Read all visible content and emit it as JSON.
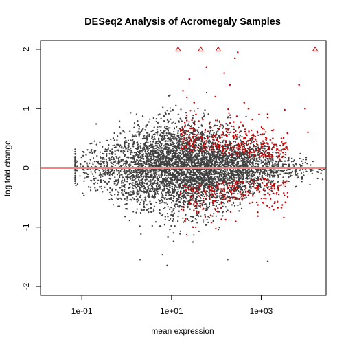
{
  "chart_data": {
    "type": "scatter",
    "title": "DESeq2 Analysis of Acromegaly Samples",
    "xlabel": "mean expression",
    "ylabel": "log fold change",
    "x_scale": "log10",
    "xlim": [
      0.012,
      28000
    ],
    "ylim": [
      -2.15,
      2.15
    ],
    "x_ticks": [
      {
        "value": 0.1,
        "label": "1e-01"
      },
      {
        "value": 10,
        "label": "1e+01"
      },
      {
        "value": 1000,
        "label": "1e+03"
      }
    ],
    "y_ticks": [
      {
        "value": -2,
        "label": "-2"
      },
      {
        "value": -1,
        "label": "-1"
      },
      {
        "value": 0,
        "label": "0"
      },
      {
        "value": 1,
        "label": "1"
      },
      {
        "value": 2,
        "label": "2"
      }
    ],
    "reference_line": {
      "y": 0,
      "color": "#ff7f7f"
    },
    "colors": {
      "not_significant": "#404040",
      "significant": "#cc0000"
    },
    "series": [
      {
        "marker": "triangle",
        "color": "#cc0000",
        "x": [
          14,
          45,
          110,
          16000
        ],
        "y": [
          2,
          2,
          2,
          2
        ]
      },
      {
        "marker": "dot",
        "color": "#cc0000",
        "x": [
          18,
          25,
          32,
          60,
          95,
          150,
          200,
          260,
          300,
          420,
          520,
          900,
          1400,
          7000,
          9500,
          11000,
          22,
          35,
          70,
          120,
          180,
          240,
          330,
          480,
          650,
          800,
          1100,
          1500,
          2200,
          28,
          40,
          55,
          85,
          140,
          210,
          280,
          380,
          550,
          700,
          1000,
          1300,
          1800,
          2600,
          20,
          30,
          50,
          75,
          130,
          190,
          250,
          360,
          500,
          750,
          1200,
          1700,
          2500,
          3500
        ],
        "y": [
          1.3,
          1.5,
          1.1,
          1.7,
          1.2,
          1.6,
          1.4,
          1.85,
          1.95,
          1.1,
          1.0,
          0.9,
          0.85,
          1.4,
          1.0,
          0.6,
          0.8,
          0.9,
          0.75,
          0.7,
          0.65,
          0.7,
          0.6,
          0.55,
          0.5,
          0.45,
          0.4,
          0.35,
          0.3,
          0.45,
          0.5,
          0.35,
          0.4,
          0.3,
          0.35,
          0.25,
          0.3,
          0.25,
          0.2,
          0.25,
          0.2,
          0.2,
          0.15,
          -0.9,
          -1.0,
          -0.7,
          -0.8,
          -0.6,
          -0.55,
          -0.5,
          -0.45,
          -0.4,
          -0.35,
          -0.3,
          -0.35,
          -0.3,
          -0.25
        ]
      },
      {
        "marker": "dot",
        "color": "#404040",
        "x": [
          0.3,
          2,
          8,
          180,
          1400
        ],
        "y": [
          0.1,
          -1.55,
          -1.65,
          -1.55,
          -1.58
        ]
      }
    ]
  }
}
